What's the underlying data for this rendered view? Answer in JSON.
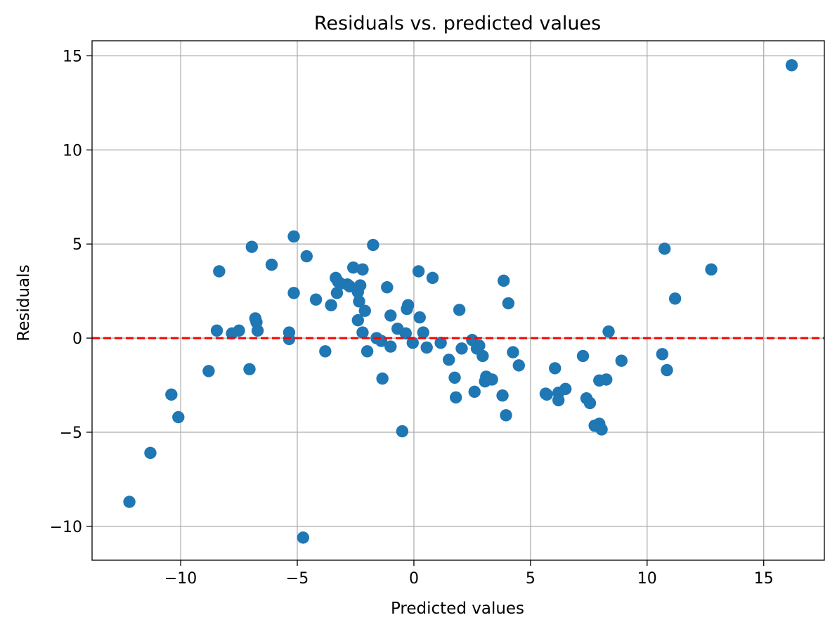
{
  "chart_data": {
    "type": "scatter",
    "title": "Residuals vs. predicted values",
    "xlabel": "Predicted values",
    "ylabel": "Residuals",
    "xlim": [
      -13.8,
      17.6
    ],
    "ylim": [
      -11.8,
      15.8
    ],
    "xticks": [
      -10,
      -5,
      0,
      5,
      10,
      15
    ],
    "xtick_labels": [
      "−10",
      "−5",
      "0",
      "5",
      "10",
      "15"
    ],
    "yticks": [
      -10,
      -5,
      0,
      5,
      10,
      15
    ],
    "ytick_labels": [
      "−10",
      "−5",
      "0",
      "5",
      "10",
      "15"
    ],
    "grid": true,
    "legend": false,
    "colors": {
      "points": "#1f77b4",
      "reference_line": "#ff0000",
      "grid": "#b0b0b0",
      "axes": "#000000"
    },
    "reference_line": {
      "y": 0,
      "style": "dashed"
    },
    "series": [
      {
        "points": [
          [
            -12.2,
            -8.7
          ],
          [
            -11.3,
            -6.1
          ],
          [
            -10.4,
            -3.0
          ],
          [
            -10.1,
            -4.2
          ],
          [
            -8.8,
            -1.75
          ],
          [
            -8.45,
            0.4
          ],
          [
            -8.35,
            3.55
          ],
          [
            -7.8,
            0.25
          ],
          [
            -7.5,
            0.4
          ],
          [
            -7.05,
            -1.65
          ],
          [
            -6.95,
            4.85
          ],
          [
            -6.8,
            1.05
          ],
          [
            -6.75,
            0.85
          ],
          [
            -6.7,
            0.4
          ],
          [
            -6.1,
            3.9
          ],
          [
            -5.35,
            0.3
          ],
          [
            -5.35,
            -0.05
          ],
          [
            -5.15,
            5.4
          ],
          [
            -5.15,
            2.4
          ],
          [
            -4.6,
            4.35
          ],
          [
            -4.2,
            2.05
          ],
          [
            -3.8,
            -0.7
          ],
          [
            -3.55,
            1.75
          ],
          [
            -3.35,
            3.2
          ],
          [
            -3.3,
            2.4
          ],
          [
            -3.15,
            2.9
          ],
          [
            -2.85,
            2.85
          ],
          [
            -2.75,
            2.75
          ],
          [
            -2.6,
            3.75
          ],
          [
            -2.4,
            2.45
          ],
          [
            -2.4,
            0.95
          ],
          [
            -2.35,
            1.95
          ],
          [
            -2.3,
            2.8
          ],
          [
            -2.2,
            3.65
          ],
          [
            -2.2,
            0.3
          ],
          [
            -2.1,
            1.45
          ],
          [
            -2.0,
            -0.7
          ],
          [
            -1.75,
            4.95
          ],
          [
            -1.6,
            0.0
          ],
          [
            -1.4,
            -0.15
          ],
          [
            -1.35,
            -2.15
          ],
          [
            -1.15,
            2.7
          ],
          [
            -1.0,
            1.2
          ],
          [
            -1.0,
            -0.45
          ],
          [
            -0.7,
            0.5
          ],
          [
            -0.5,
            -4.95
          ],
          [
            -0.35,
            0.25
          ],
          [
            -0.3,
            1.55
          ],
          [
            -0.25,
            1.75
          ],
          [
            -0.05,
            -0.25
          ],
          [
            0.2,
            3.55
          ],
          [
            0.25,
            1.1
          ],
          [
            0.4,
            0.3
          ],
          [
            0.55,
            -0.5
          ],
          [
            0.8,
            3.2
          ],
          [
            1.15,
            -0.25
          ],
          [
            1.5,
            -1.15
          ],
          [
            1.75,
            -2.1
          ],
          [
            1.8,
            -3.15
          ],
          [
            1.95,
            1.5
          ],
          [
            2.05,
            -0.55
          ],
          [
            2.5,
            -0.1
          ],
          [
            2.6,
            -2.85
          ],
          [
            2.7,
            -0.55
          ],
          [
            2.8,
            -0.4
          ],
          [
            2.95,
            -0.95
          ],
          [
            3.05,
            -2.3
          ],
          [
            3.1,
            -2.05
          ],
          [
            3.35,
            -2.2
          ],
          [
            3.8,
            -3.05
          ],
          [
            3.85,
            3.05
          ],
          [
            3.95,
            -4.1
          ],
          [
            4.05,
            1.85
          ],
          [
            4.25,
            -0.75
          ],
          [
            4.5,
            -1.45
          ],
          [
            5.65,
            -2.95
          ],
          [
            5.7,
            -3.0
          ],
          [
            6.05,
            -1.6
          ],
          [
            6.2,
            -2.9
          ],
          [
            6.2,
            -3.3
          ],
          [
            6.5,
            -2.7
          ],
          [
            7.25,
            -0.95
          ],
          [
            7.4,
            -3.2
          ],
          [
            7.55,
            -3.45
          ],
          [
            7.75,
            -4.65
          ],
          [
            7.95,
            -2.25
          ],
          [
            7.95,
            -4.55
          ],
          [
            8.05,
            -4.85
          ],
          [
            8.25,
            -2.2
          ],
          [
            8.35,
            0.35
          ],
          [
            8.9,
            -1.2
          ],
          [
            10.65,
            -0.85
          ],
          [
            10.75,
            4.75
          ],
          [
            10.85,
            -1.7
          ],
          [
            11.2,
            2.1
          ],
          [
            12.75,
            3.65
          ],
          [
            16.2,
            14.5
          ],
          [
            -4.75,
            -10.6
          ],
          [
            -3.25,
            3.0
          ]
        ]
      }
    ]
  }
}
